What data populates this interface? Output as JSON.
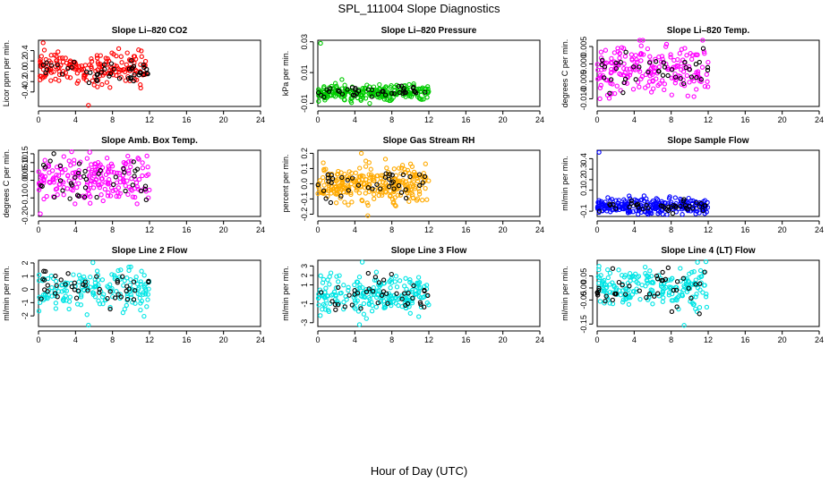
{
  "page_title": "SPL_111004  Slope Diagnostics",
  "shared_xlabel": "Hour of Day (UTC)",
  "x_ticks": [
    "0",
    "4",
    "8",
    "12",
    "16",
    "20",
    "24"
  ],
  "xlim": [
    0,
    24
  ],
  "colors": {
    "reference": "#000000"
  },
  "chart_data": [
    {
      "type": "scatter",
      "title": "Slope Li–820 CO2",
      "ylabel": "Licor ppm per min.",
      "ylim": [
        -0.68,
        0.6
      ],
      "y_ticks": [
        "-0.4",
        "-0.2",
        "0.0",
        "0.2",
        "0.4"
      ],
      "y_tick_values": [
        -0.4,
        -0.2,
        0.0,
        0.2,
        0.4
      ],
      "color": "#ff0000",
      "x_range": [
        0,
        12
      ],
      "center": 0.05,
      "spread": 0.14,
      "ref_spread": 0.12,
      "n": 190,
      "n_ref": 45,
      "outliers": [
        [
          0.5,
          0.55
        ],
        [
          5.4,
          -0.66
        ]
      ]
    },
    {
      "type": "scatter",
      "title": "Slope Li–820 Pressure",
      "ylabel": "kPa per min.",
      "ylim": [
        -0.012,
        0.031
      ],
      "y_ticks": [
        "-0.01",
        "0.01",
        "0.03"
      ],
      "y_tick_values": [
        -0.01,
        0.01,
        0.03
      ],
      "color": "#00cc00",
      "x_range": [
        0,
        12
      ],
      "center": -0.003,
      "spread": 0.0025,
      "ref_spread": 0.002,
      "n": 240,
      "n_ref": 40,
      "outliers": [
        [
          0.3,
          0.029
        ],
        [
          2.6,
          0.0055
        ],
        [
          5.6,
          -0.01
        ]
      ]
    },
    {
      "type": "scatter",
      "title": "Slope Li–820 Temp.",
      "ylabel": "degrees C per min.",
      "ylim": [
        -0.0122,
        0.0068
      ],
      "y_ticks": [
        "-0.010",
        "-0.005",
        "0.000",
        "0.005"
      ],
      "y_tick_values": [
        -0.01,
        -0.005,
        0.0,
        0.005
      ],
      "color": "#ff00ff",
      "x_range": [
        0,
        12
      ],
      "center": -0.002,
      "spread": 0.0033,
      "ref_spread": 0.003,
      "n": 200,
      "n_ref": 40,
      "outliers": [
        [
          4.6,
          0.0068
        ],
        [
          11.4,
          0.0068
        ],
        [
          0.3,
          -0.01
        ]
      ]
    },
    {
      "type": "scatter",
      "title": "Slope Amb. Box Temp.",
      "ylabel": "degrees C per min.",
      "ylim": [
        -0.205,
        0.17
      ],
      "y_ticks": [
        "-0.20",
        "-0.10",
        "0.00",
        "0.05",
        "0.10",
        "0.15"
      ],
      "y_tick_values": [
        -0.2,
        -0.1,
        0.0,
        0.05,
        0.1,
        0.15
      ],
      "color": "#ff00ff",
      "x_range": [
        0,
        12
      ],
      "center": 0.01,
      "spread": 0.07,
      "ref_spread": 0.06,
      "n": 200,
      "n_ref": 40,
      "outliers": [
        [
          0.2,
          -0.19
        ]
      ]
    },
    {
      "type": "scatter",
      "title": "Slope Gas Stream RH",
      "ylabel": "percent per min.",
      "ylim": [
        -0.215,
        0.22
      ],
      "y_ticks": [
        "-0.2",
        "-0.1",
        "0.0",
        "0.1",
        "0.2"
      ],
      "y_tick_values": [
        -0.2,
        -0.1,
        0.0,
        0.1,
        0.2
      ],
      "color": "#ffaa00",
      "x_range": [
        0,
        12
      ],
      "center": 0.0,
      "spread": 0.06,
      "ref_spread": 0.05,
      "n": 280,
      "n_ref": 40,
      "outliers": [
        [
          5.4,
          -0.21
        ],
        [
          4.7,
          0.2
        ]
      ]
    },
    {
      "type": "scatter",
      "title": "Slope Sample Flow",
      "ylabel": "ml/min per min.",
      "ylim": [
        -0.15,
        0.48
      ],
      "y_ticks": [
        "-0.1",
        "0.1",
        "0.2",
        "0.3",
        "0.4"
      ],
      "y_tick_values": [
        -0.1,
        0.1,
        0.2,
        0.3,
        0.4
      ],
      "color": "#0000ff",
      "x_range": [
        0,
        12
      ],
      "center": -0.05,
      "spread": 0.035,
      "ref_spread": 0.03,
      "n": 240,
      "n_ref": 40,
      "outliers": [
        [
          0.2,
          0.46
        ],
        [
          9.2,
          -0.13
        ]
      ]
    },
    {
      "type": "scatter",
      "title": "Slope Line 2 Flow",
      "ylabel": "ml/min per min.",
      "ylim": [
        -2.8,
        2.2
      ],
      "y_ticks": [
        "-2",
        "-1",
        "0",
        "1",
        "2"
      ],
      "y_tick_values": [
        -2,
        -1,
        0,
        1,
        2
      ],
      "color": "#00e5e5",
      "x_range": [
        0,
        12
      ],
      "center": 0.0,
      "spread": 0.8,
      "ref_spread": 0.7,
      "n": 170,
      "n_ref": 45,
      "outliers": [
        [
          5.4,
          -2.7
        ]
      ]
    },
    {
      "type": "scatter",
      "title": "Slope Line 3 Flow",
      "ylabel": "ml/min per min.",
      "ylim": [
        -3.4,
        3.6
      ],
      "y_ticks": [
        "-3",
        "-1",
        "1",
        "2",
        "3"
      ],
      "y_tick_values": [
        -3,
        -1,
        1,
        2,
        3
      ],
      "color": "#00e5e5",
      "x_range": [
        0,
        12
      ],
      "center": 0.0,
      "spread": 0.9,
      "ref_spread": 0.8,
      "n": 210,
      "n_ref": 40,
      "outliers": [
        [
          4.5,
          -3.2
        ],
        [
          4.8,
          3.4
        ]
      ]
    },
    {
      "type": "scatter",
      "title": "Slope Line 4 (LT) Flow",
      "ylabel": "ml/min per min.",
      "ylim": [
        -0.16,
        0.115
      ],
      "y_ticks": [
        "-0.15",
        "-0.05",
        "0.00",
        "0.05"
      ],
      "y_tick_values": [
        -0.15,
        -0.05,
        0.0,
        0.05
      ],
      "color": "#00e5e5",
      "x_range": [
        0,
        12
      ],
      "center": 0.0,
      "spread": 0.04,
      "ref_spread": 0.05,
      "n": 200,
      "n_ref": 40,
      "outliers": [
        [
          9.4,
          -0.155
        ],
        [
          0.2,
          0.09
        ]
      ]
    }
  ]
}
